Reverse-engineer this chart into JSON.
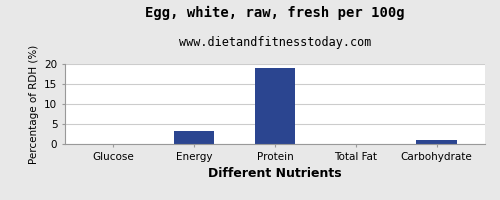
{
  "title": "Egg, white, raw, fresh per 100g",
  "subtitle": "www.dietandfitnesstoday.com",
  "xlabel": "Different Nutrients",
  "ylabel": "Percentage of RDH (%)",
  "categories": [
    "Glucose",
    "Energy",
    "Protein",
    "Total Fat",
    "Carbohydrate"
  ],
  "values": [
    0,
    3.3,
    19.1,
    0,
    1.0
  ],
  "bar_color": "#2b4590",
  "ylim": [
    0,
    20
  ],
  "yticks": [
    0,
    5,
    10,
    15,
    20
  ],
  "background_color": "#e8e8e8",
  "plot_background": "#ffffff",
  "title_fontsize": 10,
  "subtitle_fontsize": 8.5,
  "xlabel_fontsize": 9,
  "ylabel_fontsize": 7.5,
  "tick_fontsize": 7.5,
  "grid_color": "#cccccc"
}
